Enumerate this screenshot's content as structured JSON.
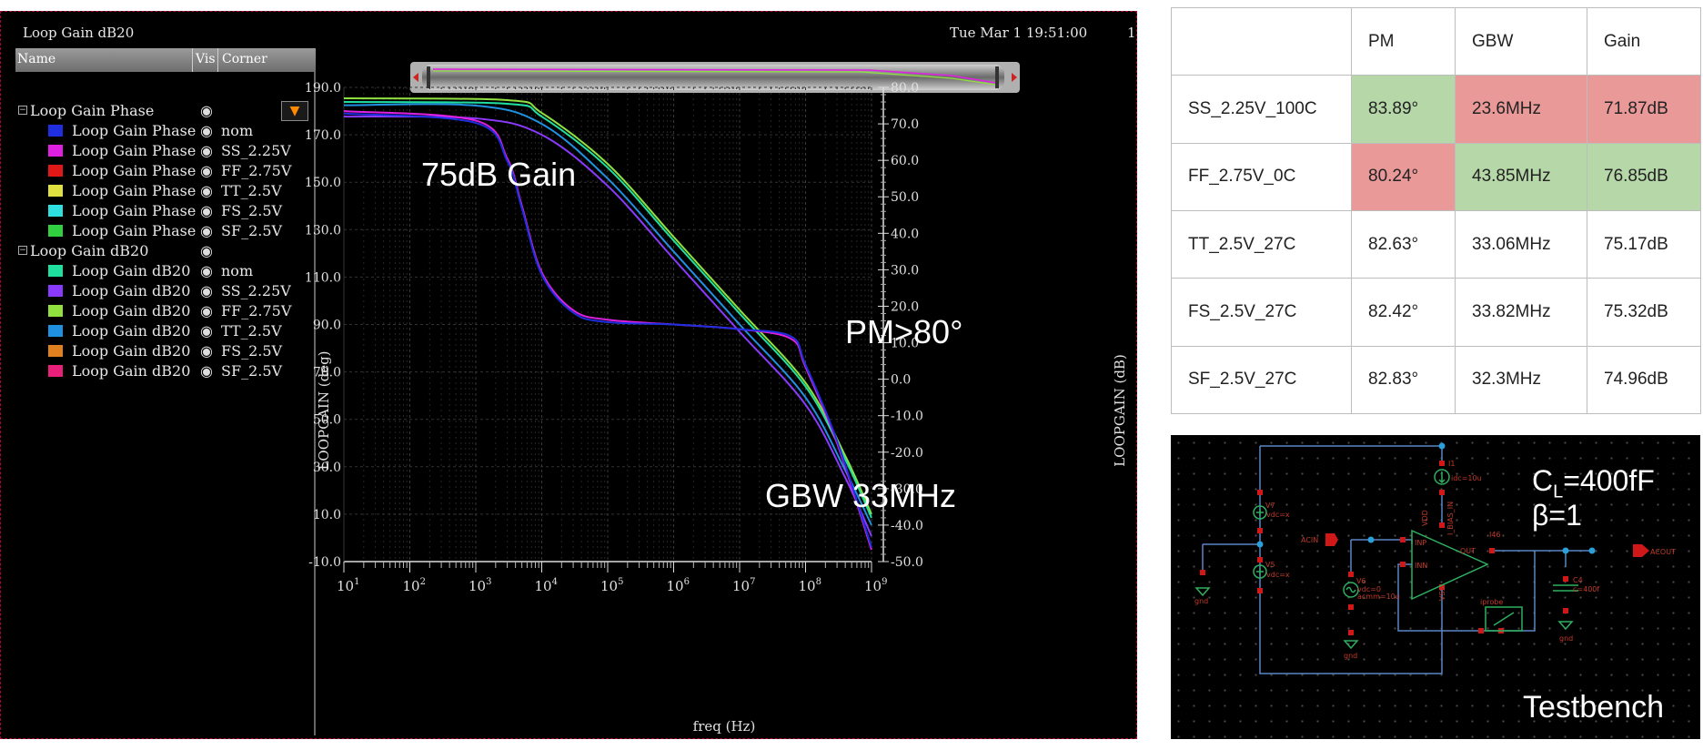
{
  "viewer": {
    "title": "Loop Gain dB20",
    "date": "Tue Mar 1 19:51:00",
    "date_clip": "1",
    "header": {
      "name": "Name",
      "vis": "Vis",
      "corner": "Corner"
    }
  },
  "legend": {
    "groups": [
      {
        "label": "Loop Gain Phase",
        "items": [
          {
            "label": "Loop Gain Phase",
            "corner": "nom",
            "color": "#1f2fe0"
          },
          {
            "label": "Loop Gain Phase",
            "corner": "SS_2.25V",
            "color": "#e020e0"
          },
          {
            "label": "Loop Gain Phase",
            "corner": "FF_2.75V",
            "color": "#e01818"
          },
          {
            "label": "Loop Gain Phase",
            "corner": "TT_2.5V",
            "color": "#e0e040"
          },
          {
            "label": "Loop Gain Phase",
            "corner": "FS_2.5V",
            "color": "#30e0e0"
          },
          {
            "label": "Loop Gain Phase",
            "corner": "SF_2.5V",
            "color": "#30d040"
          }
        ]
      },
      {
        "label": "Loop Gain dB20",
        "items": [
          {
            "label": "Loop Gain dB20",
            "corner": "nom",
            "color": "#20e0a0"
          },
          {
            "label": "Loop Gain dB20",
            "corner": "SS_2.25V",
            "color": "#8a3aff"
          },
          {
            "label": "Loop Gain dB20",
            "corner": "FF_2.75V",
            "color": "#90e040"
          },
          {
            "label": "Loop Gain dB20",
            "corner": "TT_2.5V",
            "color": "#2090e0"
          },
          {
            "label": "Loop Gain dB20",
            "corner": "FS_2.5V",
            "color": "#e08020"
          },
          {
            "label": "Loop Gain dB20",
            "corner": "SF_2.5V",
            "color": "#e8207a"
          }
        ]
      }
    ]
  },
  "chart_data": {
    "type": "line",
    "xlabel": "freq (Hz)",
    "ylabel_left": "LOOPGAIN (deg)",
    "ylabel_right": "LOOPGAIN (dB)",
    "x_scale": "log",
    "xlim": [
      10,
      1000000000
    ],
    "ylim_left": [
      -10,
      190
    ],
    "ylim_right": [
      -50,
      80
    ],
    "x_ticks": [
      "10^1",
      "10^2",
      "10^3",
      "10^4",
      "10^5",
      "10^6",
      "10^7",
      "10^8",
      "10^9"
    ],
    "y_ticks_left": [
      "190.0",
      "170.0",
      "150.0",
      "130.0",
      "110.0",
      "90.0",
      "70.0",
      "50.0",
      "30.0",
      "10.0",
      "-10.0"
    ],
    "y_ticks_right": [
      "80.0",
      "70.0",
      "60.0",
      "50.0",
      "40.0",
      "30.0",
      "20.0",
      "10.0",
      "0.0",
      "-10.0",
      "-20.0",
      "-30.0",
      "-40.0",
      "-50.0"
    ],
    "grid": true,
    "series": [
      {
        "axis": "right",
        "color": "#2090e0",
        "x": [
          10,
          1000,
          10000,
          100000,
          1000000,
          10000000,
          100000000,
          400000000,
          1000000000
        ],
        "y": [
          75.1,
          75,
          70,
          55,
          35,
          15,
          -5,
          -25,
          -40
        ]
      },
      {
        "axis": "right",
        "color": "#8a3aff",
        "x": [
          10,
          1000,
          10000,
          100000,
          1000000,
          10000000,
          100000000,
          400000000,
          1000000000
        ],
        "y": [
          72,
          71.5,
          67,
          53,
          33,
          13,
          -7,
          -27,
          -43
        ]
      },
      {
        "axis": "right",
        "color": "#90e040",
        "x": [
          10,
          3000,
          10000,
          100000,
          1000000,
          10000000,
          100000000,
          400000000,
          1000000000
        ],
        "y": [
          77,
          76.5,
          73,
          59,
          39,
          19,
          -1,
          -21,
          -37
        ]
      },
      {
        "axis": "right",
        "color": "#20e0a0",
        "x": [
          10,
          3000,
          10000,
          100000,
          1000000,
          10000000,
          100000000,
          400000000,
          1000000000
        ],
        "y": [
          76,
          75.5,
          72,
          58,
          38,
          18,
          -2,
          -22,
          -38
        ]
      },
      {
        "axis": "left",
        "color": "#e020e0",
        "x": [
          10,
          1000,
          3000,
          5000,
          10000,
          30000,
          100000,
          1000000,
          10000000,
          60000000,
          100000000,
          300000000,
          1000000000
        ],
        "y": [
          180,
          176,
          160,
          140,
          112,
          96,
          92,
          90,
          88,
          84,
          72,
          40,
          -5
        ]
      },
      {
        "axis": "left",
        "color": "#1f2fe0",
        "x": [
          10,
          1000,
          3000,
          5000,
          10000,
          30000,
          100000,
          1000000,
          10000000,
          60000000,
          100000000,
          300000000,
          1000000000
        ],
        "y": [
          179,
          175,
          159,
          139,
          111,
          95,
          91,
          90,
          88,
          85,
          73,
          41,
          -4
        ]
      }
    ]
  },
  "annotations": {
    "gain": "75dB Gain",
    "pm": "PM>80°",
    "gbw": "GBW 33MHz"
  },
  "table": {
    "header": [
      "",
      "PM",
      "GBW",
      "Gain"
    ],
    "rows": [
      {
        "corner": "SS_2.25V_100C",
        "pm": "83.89°",
        "gbw": "23.6MHz",
        "gain": "71.87dB",
        "pm_status": "good",
        "gbw_status": "bad",
        "gain_status": "bad"
      },
      {
        "corner": "FF_2.75V_0C",
        "pm": "80.24°",
        "gbw": "43.85MHz",
        "gain": "76.85dB",
        "pm_status": "bad",
        "gbw_status": "good",
        "gain_status": "good"
      },
      {
        "corner": "TT_2.5V_27C",
        "pm": "82.63°",
        "gbw": "33.06MHz",
        "gain": "75.17dB",
        "pm_status": "",
        "gbw_status": "",
        "gain_status": ""
      },
      {
        "corner": "FS_2.5V_27C",
        "pm": "82.42°",
        "gbw": "33.82MHz",
        "gain": "75.32dB",
        "pm_status": "",
        "gbw_status": "",
        "gain_status": ""
      },
      {
        "corner": "SF_2.5V_27C",
        "pm": "82.83°",
        "gbw": "32.3MHz",
        "gain": "74.96dB",
        "pm_status": "",
        "gbw_status": "",
        "gain_status": ""
      }
    ]
  },
  "testbench": {
    "cl_prefix": "C",
    "cl_sub": "L",
    "cl_value": "=400fF",
    "beta": "β=1",
    "label": "Testbench",
    "small_labels": {
      "v7": "V7",
      "vdc7": "vdc=x",
      "v5": "V5",
      "vdc5": "vdc=x",
      "gnd1": "gnd",
      "acin": "ACIN",
      "v6": "V6",
      "vdc6": "vdc=0",
      "acmag": "acmm=10u",
      "gnd2": "gnd",
      "i1": "I1",
      "idc": "idc=10u",
      "vdd": "VDD",
      "ibias": "I_BIAS_IN",
      "inp": "INP",
      "inn": "INN",
      "out": "OUT",
      "vss": "VSS",
      "inst": "I46",
      "c4": "C4",
      "cval": "c=400f",
      "gnd3": "gnd",
      "iprobe": "iprobe",
      "acout": "ACOUT"
    }
  }
}
